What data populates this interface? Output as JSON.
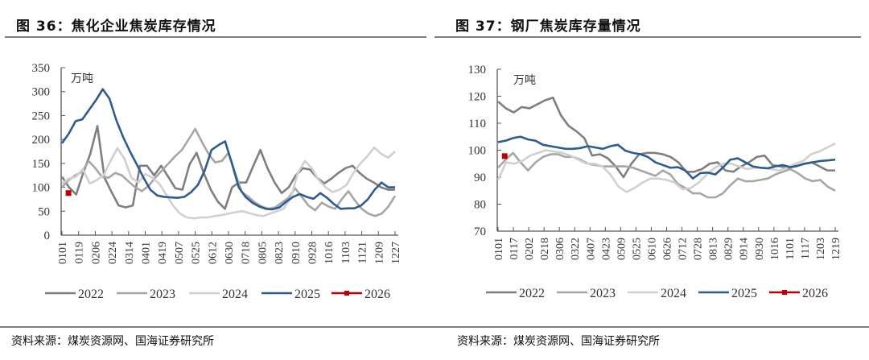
{
  "panels": [
    {
      "title": "图 36：焦化企业焦炭库存情况",
      "source": "资料来源：煤炭资源网、国海证券研究所"
    },
    {
      "title": "图 37：钢厂焦炭库存量情况",
      "source": "资料来源：煤炭资源网、国海证券研究所"
    }
  ],
  "chart_data": [
    {
      "type": "line",
      "title": "焦化企业焦炭库存情况",
      "unit_label": "万吨",
      "xlabel": "",
      "ylabel": "万吨",
      "ylim": [
        0,
        350
      ],
      "yticks": [
        0,
        50,
        100,
        150,
        200,
        250,
        300,
        350
      ],
      "x_tick_labels": [
        "0101",
        "0119",
        "0206",
        "0224",
        "0314",
        "0401",
        "0419",
        "0507",
        "0525",
        "0612",
        "0630",
        "0718",
        "0805",
        "0823",
        "0910",
        "0928",
        "1016",
        "1103",
        "1121",
        "1209",
        "1227"
      ],
      "grid": false,
      "legend_position": "bottom",
      "series": [
        {
          "name": "2022",
          "color": "#7f7f7f",
          "values": [
            122,
            100,
            85,
            130,
            170,
            228,
            120,
            90,
            62,
            58,
            62,
            145,
            145,
            125,
            145,
            122,
            98,
            95,
            148,
            172,
            130,
            95,
            70,
            55,
            100,
            110,
            110,
            145,
            178,
            140,
            110,
            88,
            100,
            125,
            140,
            137,
            120,
            108,
            118,
            130,
            140,
            145,
            130,
            118,
            110,
            100,
            95,
            95
          ]
        },
        {
          "name": "2023",
          "color": "#a6a6a6",
          "values": [
            100,
            115,
            125,
            132,
            155,
            140,
            122,
            120,
            130,
            125,
            112,
            100,
            92,
            103,
            120,
            135,
            150,
            165,
            178,
            200,
            222,
            195,
            170,
            152,
            155,
            172,
            130,
            90,
            80,
            68,
            60,
            55,
            58,
            68,
            78,
            98,
            80,
            62,
            52,
            68,
            60,
            55,
            75,
            92,
            72,
            55,
            45,
            40,
            45,
            60,
            82
          ]
        },
        {
          "name": "2024",
          "color": "#d0d0d0",
          "values": [
            108,
            118,
            122,
            138,
            108,
            115,
            125,
            155,
            182,
            160,
            120,
            110,
            128,
            120,
            108,
            85,
            62,
            45,
            37,
            35,
            37,
            37,
            40,
            42,
            45,
            48,
            50,
            46,
            42,
            40,
            45,
            50,
            56,
            80,
            130,
            155,
            140,
            115,
            100,
            90,
            95,
            105,
            130,
            150,
            165,
            183,
            170,
            162,
            175
          ]
        },
        {
          "name": "2025",
          "color": "#2e5c8f",
          "values": [
            192,
            212,
            238,
            242,
            262,
            282,
            305,
            285,
            240,
            205,
            175,
            148,
            120,
            95,
            83,
            80,
            79,
            78,
            80,
            90,
            105,
            135,
            178,
            188,
            196,
            150,
            100,
            80,
            68,
            60,
            55,
            54,
            58,
            70,
            80,
            86,
            80,
            76,
            88,
            78,
            65,
            55,
            56,
            56,
            62,
            75,
            95,
            110,
            100,
            100
          ]
        },
        {
          "name": "2026",
          "color": "#c00000",
          "marker": "square",
          "values": [
            88
          ]
        }
      ]
    },
    {
      "type": "line",
      "title": "钢厂焦炭库存量情况",
      "unit_label": "万吨",
      "xlabel": "",
      "ylabel": "万吨",
      "ylim": [
        70,
        130
      ],
      "yticks": [
        70,
        80,
        90,
        100,
        110,
        120,
        130
      ],
      "x_tick_labels": [
        "0101",
        "0117",
        "0202",
        "0218",
        "0306",
        "0322",
        "0407",
        "0423",
        "0509",
        "0525",
        "0610",
        "0626",
        "0712",
        "0728",
        "0813",
        "0829",
        "0914",
        "0930",
        "1016",
        "1101",
        "1117",
        "1203",
        "1219"
      ],
      "grid": false,
      "legend_position": "bottom",
      "series": [
        {
          "name": "2022",
          "color": "#7f7f7f",
          "values": [
            118,
            115.5,
            114,
            116,
            115.5,
            117,
            118.5,
            119.5,
            113,
            109,
            107,
            104.5,
            98,
            98.5,
            97,
            94,
            90,
            95,
            98.5,
            99,
            99,
            98.5,
            97.5,
            95.5,
            92,
            92,
            93,
            95,
            95.5,
            92.5,
            92,
            94,
            95.5,
            97.5,
            98,
            94.5,
            94,
            93.5,
            94,
            95,
            95.5,
            94,
            92.5,
            92.5
          ]
        },
        {
          "name": "2023",
          "color": "#a6a6a6",
          "values": [
            93.5,
            96.5,
            99,
            95.5,
            92.5,
            95.5,
            97.5,
            98.5,
            98.5,
            97.5,
            97.5,
            96.5,
            95,
            94.5,
            94,
            94,
            94,
            94,
            93.5,
            92.5,
            91.5,
            90.5,
            92.5,
            91,
            87.5,
            86,
            84,
            84,
            82.5,
            82.5,
            84,
            87,
            89.5,
            88.5,
            88.5,
            89,
            89.5,
            91,
            92,
            93,
            91.5,
            89.5,
            88.5,
            89,
            86.5,
            85
          ]
        },
        {
          "name": "2024",
          "color": "#d0d0d0",
          "values": [
            89,
            95.5,
            95,
            96,
            98,
            99,
            100,
            99.5,
            99,
            98,
            96.5,
            95,
            95,
            94,
            91,
            86.5,
            84.5,
            86,
            88,
            89.5,
            89.5,
            89,
            88,
            85.5,
            86,
            88,
            91,
            93.5,
            95,
            95,
            94,
            93,
            93.5,
            93.5,
            93,
            92.5,
            93.5,
            95,
            96,
            98.5,
            99.5,
            101,
            102.5
          ]
        },
        {
          "name": "2025",
          "color": "#2e5c8f",
          "values": [
            103,
            103.5,
            104.5,
            105,
            104,
            103.5,
            102,
            101.5,
            101,
            100.5,
            100.5,
            100.8,
            101.5,
            101,
            100.5,
            101.5,
            102,
            99.8,
            99,
            98.5,
            97.5,
            95.5,
            94.5,
            93.5,
            93.7,
            92.5,
            89.5,
            91.5,
            91.7,
            91,
            93.5,
            96.5,
            97,
            95.5,
            94,
            93.5,
            93.3,
            94,
            94.5,
            93.7,
            94.3,
            95,
            95.5,
            96,
            96.2,
            96.5
          ]
        },
        {
          "name": "2026",
          "color": "#c00000",
          "marker": "square",
          "values": [
            97.8
          ]
        }
      ]
    }
  ]
}
